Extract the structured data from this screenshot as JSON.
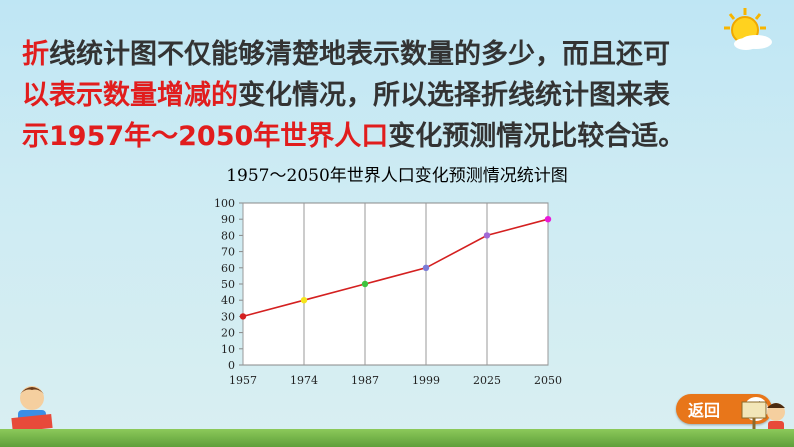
{
  "statement": {
    "line1_red": "折",
    "line1_black": "线统计图不仅能够清楚地表示数量的多少，而且还可",
    "line2_red": "以表示数量增减的",
    "line2_black": "变化情况，所以选择折线统计图来表",
    "line3_red": "示1957年～2050年世界人口",
    "line3_black": "变化预测情况比较合适。"
  },
  "buttons": {
    "back_label": "返回"
  },
  "colors": {
    "highlight": "#e11d1d",
    "line": "#d42020",
    "button": "#e8761a"
  },
  "chart_data": {
    "type": "line",
    "title": "1957～2050年世界人口变化预测情况统计图",
    "categories": [
      "1957",
      "1974",
      "1987",
      "1999",
      "2025",
      "2050"
    ],
    "values": [
      30,
      40,
      50,
      60,
      80,
      90
    ],
    "marker_colors": [
      "#d42020",
      "#f5e51c",
      "#3ec23e",
      "#7b7bd6",
      "#a16bd6",
      "#e81ad8"
    ],
    "yticks": [
      "0",
      "10",
      "20",
      "30",
      "40",
      "50",
      "60",
      "70",
      "80",
      "90",
      "100"
    ],
    "ylim": [
      0,
      100
    ],
    "xlabel": "",
    "ylabel": "",
    "grid": "vertical-at-categories"
  }
}
